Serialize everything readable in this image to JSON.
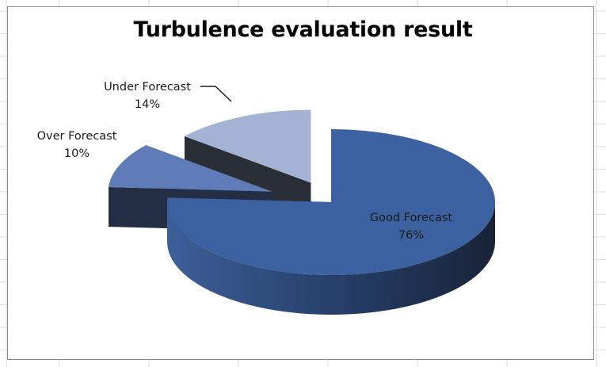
{
  "chart_data": {
    "type": "pie",
    "title": "Turbulence evaluation result",
    "categories": [
      "Good Forecast",
      "Over Forecast",
      "Under Forecast"
    ],
    "values": [
      76,
      10,
      14
    ],
    "labels": [
      "76%",
      "10%",
      "14%"
    ],
    "exploded": true,
    "three_d": true,
    "colors": {
      "Good Forecast": "#3b61a1",
      "Over Forecast": "#5f7cb8",
      "Under Forecast": "#a4b3d3"
    },
    "side_colors": {
      "Good Forecast": "#1f2e4d",
      "Over Forecast": "#232d44",
      "Under Forecast": "#2a2e36"
    }
  }
}
